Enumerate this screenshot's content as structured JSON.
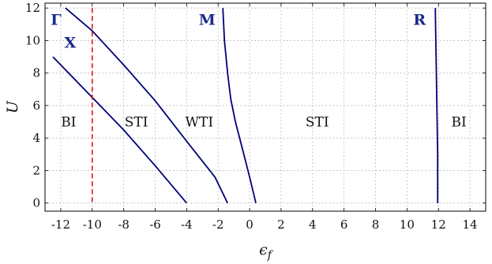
{
  "chart_data": {
    "type": "line",
    "xlabel": "ϵ_f",
    "ylabel": "U",
    "xlim": [
      -13,
      15
    ],
    "ylim": [
      -0.5,
      12.3
    ],
    "x_ticks": [
      -12,
      -10,
      -8,
      -6,
      -4,
      -2,
      0,
      2,
      4,
      6,
      8,
      10,
      12,
      14
    ],
    "x_tick_labels": [
      "-12",
      "-10",
      "-8",
      "-6",
      "-4",
      "-2",
      "0",
      "2",
      "4",
      "6",
      "8",
      "10",
      "12",
      "14"
    ],
    "y_ticks": [
      0,
      2,
      4,
      6,
      8,
      10,
      12
    ],
    "y_tick_labels": [
      "0",
      "2",
      "4",
      "6",
      "8",
      "10",
      "12"
    ],
    "grid": true,
    "series": [
      {
        "x": [
          -12.5,
          -10,
          -8,
          -6,
          -4
        ],
        "y": [
          9,
          6.5,
          4.5,
          2.3,
          0
        ],
        "color": "#00007a"
      },
      {
        "x": [
          -11.7,
          -10,
          -8,
          -6,
          -4,
          -2.2,
          -1.4
        ],
        "y": [
          12,
          10.6,
          8.5,
          6.3,
          3.8,
          1.6,
          0
        ],
        "color": "#00007a"
      },
      {
        "x": [
          -1.7,
          -1.6,
          -1.4,
          -1.2,
          -0.9,
          -0.5,
          0,
          0.4
        ],
        "y": [
          12,
          10,
          8,
          6.4,
          5,
          3.5,
          1.6,
          0
        ],
        "color": "#00007a"
      },
      {
        "x": [
          11.8,
          11.85,
          11.9,
          11.95,
          11.95
        ],
        "y": [
          12,
          9,
          6,
          3,
          0
        ],
        "color": "#00007a"
      }
    ],
    "reference_line": {
      "x": -10,
      "style": "dashed",
      "color": "#e01010"
    },
    "region_labels": [
      {
        "text": "BI",
        "x": -11.5,
        "y": 5
      },
      {
        "text": "STI",
        "x": -7.2,
        "y": 5
      },
      {
        "text": "WTI",
        "x": -3.2,
        "y": 5
      },
      {
        "text": "STI",
        "x": 4.3,
        "y": 5
      },
      {
        "text": "BI",
        "x": 13.3,
        "y": 5
      }
    ],
    "point_labels": [
      {
        "text": "Γ",
        "x": -12.3,
        "y": 11.3,
        "color": "#1a2a8a"
      },
      {
        "text": "X",
        "x": -11.4,
        "y": 9.9,
        "color": "#1a2a8a"
      },
      {
        "text": "M",
        "x": -2.7,
        "y": 11.3,
        "color": "#1a2a8a"
      },
      {
        "text": "R",
        "x": 10.8,
        "y": 11.3,
        "color": "#1a2a8a"
      }
    ]
  }
}
